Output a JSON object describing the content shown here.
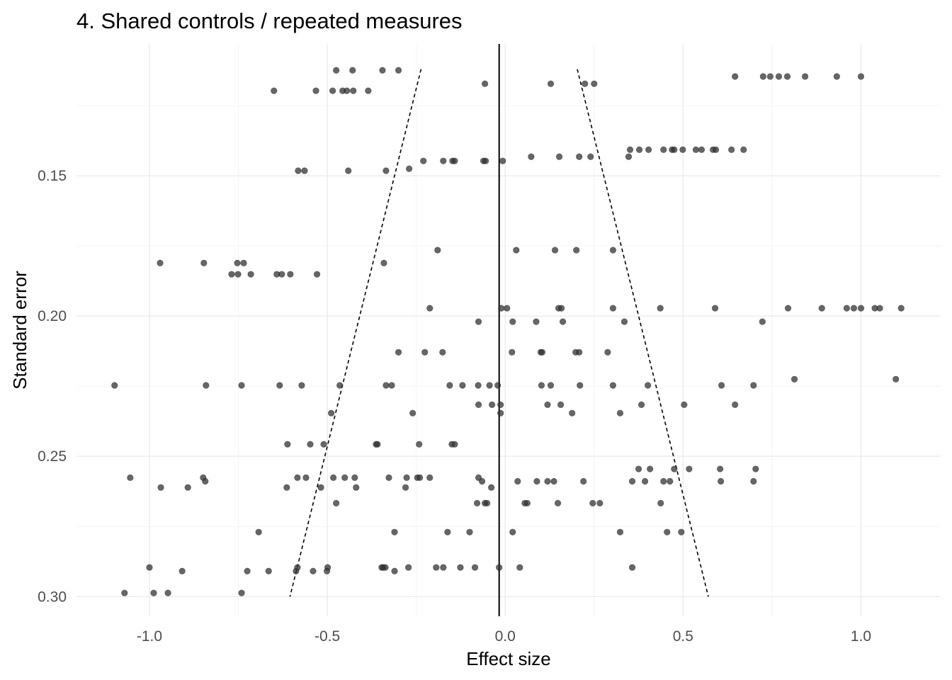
{
  "chart_data": {
    "type": "scatter",
    "title": "4. Shared controls / repeated measures",
    "xlabel": "Effect size",
    "ylabel": "Standard error",
    "xlim": [
      -1.205,
      1.224
    ],
    "ylim": [
      0.307,
      0.103
    ],
    "y_reversed": true,
    "grid": true,
    "x_ticks": [
      -1.0,
      -0.5,
      0.0,
      0.5,
      1.0
    ],
    "x_tick_labels": [
      "-1.0",
      "-0.5",
      "0.0",
      "0.5",
      "1.0"
    ],
    "y_ticks": [
      0.15,
      0.2,
      0.25,
      0.3
    ],
    "y_tick_labels": [
      "0.15",
      "0.20",
      "0.25",
      "0.30"
    ],
    "pooled_estimate": -0.017,
    "funnel": {
      "se_min": 0.112,
      "se_max": 0.3,
      "z": 1.96
    },
    "point_color": "#333333",
    "points_by_se": [
      {
        "se": 0.1124,
        "x": [
          -0.475,
          -0.429,
          -0.345,
          -0.3
        ]
      },
      {
        "se": 0.1146,
        "x": [
          0.646,
          0.725,
          0.745,
          0.769,
          0.793,
          0.843,
          0.932,
          1.0
        ]
      },
      {
        "se": 0.1172,
        "x": [
          -0.057,
          0.128,
          0.224,
          0.25
        ]
      },
      {
        "se": 0.1197,
        "x": [
          -0.65,
          -0.532,
          -0.485,
          -0.457,
          -0.445,
          -0.427,
          -0.385
        ]
      },
      {
        "se": 0.1407,
        "x": [
          0.351,
          0.377,
          0.403,
          0.445,
          0.469,
          0.475,
          0.499,
          0.536,
          0.552,
          0.584,
          0.592,
          0.636,
          0.67
        ]
      },
      {
        "se": 0.1432,
        "x": [
          0.073,
          0.152,
          0.208,
          0.24,
          0.347
        ]
      },
      {
        "se": 0.1447,
        "x": [
          -0.23,
          -0.174,
          -0.148,
          -0.142,
          -0.061,
          -0.055,
          -0.007
        ]
      },
      {
        "se": 0.1475,
        "x": [
          -0.27
        ]
      },
      {
        "se": 0.1482,
        "x": [
          -0.582,
          -0.564,
          -0.441,
          -0.335
        ]
      },
      {
        "se": 0.1765,
        "x": [
          -0.19,
          0.031,
          0.14,
          0.2,
          0.303
        ]
      },
      {
        "se": 0.1811,
        "x": [
          -0.97,
          -0.847,
          -0.753,
          -0.735,
          -0.341
        ]
      },
      {
        "se": 0.1851,
        "x": [
          -0.769,
          -0.751,
          -0.715,
          -0.642,
          -0.628,
          -0.604,
          -0.529
        ]
      },
      {
        "se": 0.1972,
        "x": [
          -0.212,
          -0.011,
          0.005,
          0.15,
          0.158,
          0.303,
          0.436,
          0.59,
          0.795,
          0.89,
          0.96,
          0.98,
          1.0,
          1.039,
          1.053,
          1.113
        ]
      },
      {
        "se": 0.202,
        "x": [
          -0.075,
          0.021,
          0.087,
          0.162,
          0.335,
          0.723
        ]
      },
      {
        "se": 0.2129,
        "x": [
          -0.3,
          -0.226,
          -0.176,
          0.019,
          0.1,
          0.104,
          0.198,
          0.208,
          0.288
        ]
      },
      {
        "se": 0.2225,
        "x": [
          0.813,
          1.098
        ]
      },
      {
        "se": 0.2247,
        "x": [
          -1.098,
          -0.841,
          -0.741,
          -0.634,
          -0.572,
          -0.465,
          -0.335,
          -0.319,
          -0.156,
          -0.12,
          -0.076,
          -0.044,
          -0.021,
          0.102,
          0.128,
          0.21,
          0.303,
          0.401,
          0.608,
          0.698
        ]
      },
      {
        "se": 0.2316,
        "x": [
          -0.075,
          -0.037,
          -0.013,
          0.119,
          0.156,
          0.383,
          0.503,
          0.646
        ]
      },
      {
        "se": 0.2346,
        "x": [
          -0.489,
          -0.26,
          -0.013,
          0.188,
          0.323
        ]
      },
      {
        "se": 0.2457,
        "x": [
          -0.612,
          -0.548,
          -0.51,
          -0.363,
          -0.359,
          -0.242,
          -0.15,
          -0.142
        ]
      },
      {
        "se": 0.2545,
        "x": [
          0.375,
          0.407,
          0.475,
          0.517,
          0.604,
          0.704
        ]
      },
      {
        "se": 0.2576,
        "x": [
          -1.054,
          -0.849,
          -0.584,
          -0.56,
          -0.483,
          -0.451,
          -0.423,
          -0.327,
          -0.277,
          -0.247,
          -0.24,
          -0.212,
          -0.075
        ]
      },
      {
        "se": 0.2589,
        "x": [
          -0.843,
          -0.065,
          0.035,
          0.089,
          0.119,
          0.137,
          0.22,
          0.357,
          0.393,
          0.445,
          0.463,
          0.606,
          0.698
        ]
      },
      {
        "se": 0.2611,
        "x": [
          -0.968,
          -0.892,
          -0.614,
          -0.518,
          -0.419,
          -0.28,
          -0.039
        ]
      },
      {
        "se": 0.2667,
        "x": [
          -0.475,
          -0.079,
          -0.057,
          -0.051,
          0.055,
          0.062,
          0.148,
          0.246,
          0.266,
          0.437
        ]
      },
      {
        "se": 0.277,
        "x": [
          -0.693,
          -0.311,
          -0.162,
          -0.1,
          0.021,
          0.323,
          0.455,
          0.495
        ]
      },
      {
        "se": 0.2896,
        "x": [
          -1.0,
          -0.584,
          -0.499,
          -0.347,
          -0.343,
          -0.337,
          -0.272,
          -0.194,
          -0.174,
          -0.126,
          -0.085,
          -0.017,
          0.041,
          0.357
        ]
      },
      {
        "se": 0.2909,
        "x": [
          -0.908,
          -0.725,
          -0.665,
          -0.588,
          -0.54,
          -0.501,
          -0.311
        ]
      },
      {
        "se": 0.2987,
        "x": [
          -1.07,
          -0.988,
          -0.948,
          -0.741
        ]
      }
    ]
  }
}
